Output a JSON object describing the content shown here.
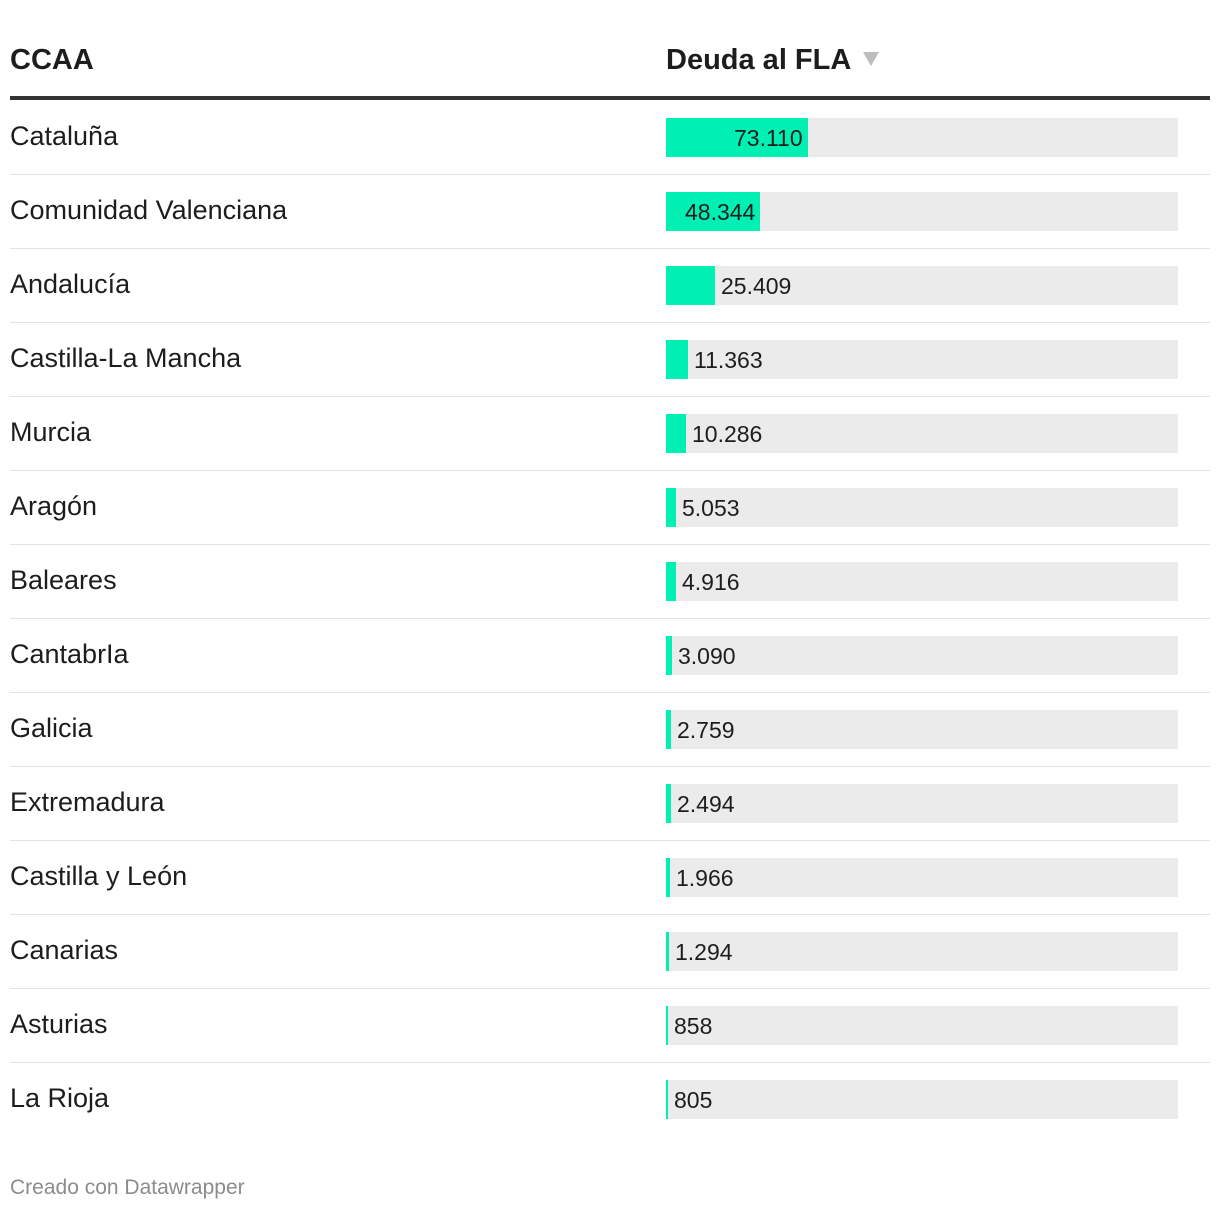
{
  "table": {
    "headers": {
      "ccaa": "CCAA",
      "deuda": "Deuda al FLA"
    }
  },
  "chart_data": {
    "type": "table",
    "title": "",
    "columns": [
      "CCAA",
      "Deuda al FLA"
    ],
    "max": 264000,
    "rows": [
      {
        "name": "Cataluña",
        "value": 73110,
        "label": "73.110"
      },
      {
        "name": "Comunidad Valenciana",
        "value": 48344,
        "label": "48.344"
      },
      {
        "name": "Andalucía",
        "value": 25409,
        "label": "25.409"
      },
      {
        "name": "Castilla-La Mancha",
        "value": 11363,
        "label": "11.363"
      },
      {
        "name": "Murcia",
        "value": 10286,
        "label": "10.286"
      },
      {
        "name": "Aragón",
        "value": 5053,
        "label": "5.053"
      },
      {
        "name": "Baleares",
        "value": 4916,
        "label": "4.916"
      },
      {
        "name": "CantabrIa",
        "value": 3090,
        "label": "3.090"
      },
      {
        "name": "Galicia",
        "value": 2759,
        "label": "2.759"
      },
      {
        "name": "Extremadura",
        "value": 2494,
        "label": "2.494"
      },
      {
        "name": "Castilla y León",
        "value": 1966,
        "label": "1.966"
      },
      {
        "name": "Canarias",
        "value": 1294,
        "label": "1.294"
      },
      {
        "name": "Asturias",
        "value": 858,
        "label": "858"
      },
      {
        "name": "La Rioja",
        "value": 805,
        "label": "805"
      }
    ],
    "bar_color": "#00f0b4",
    "track_color": "#ebebeb"
  },
  "footer": {
    "credit": "Creado con Datawrapper"
  }
}
